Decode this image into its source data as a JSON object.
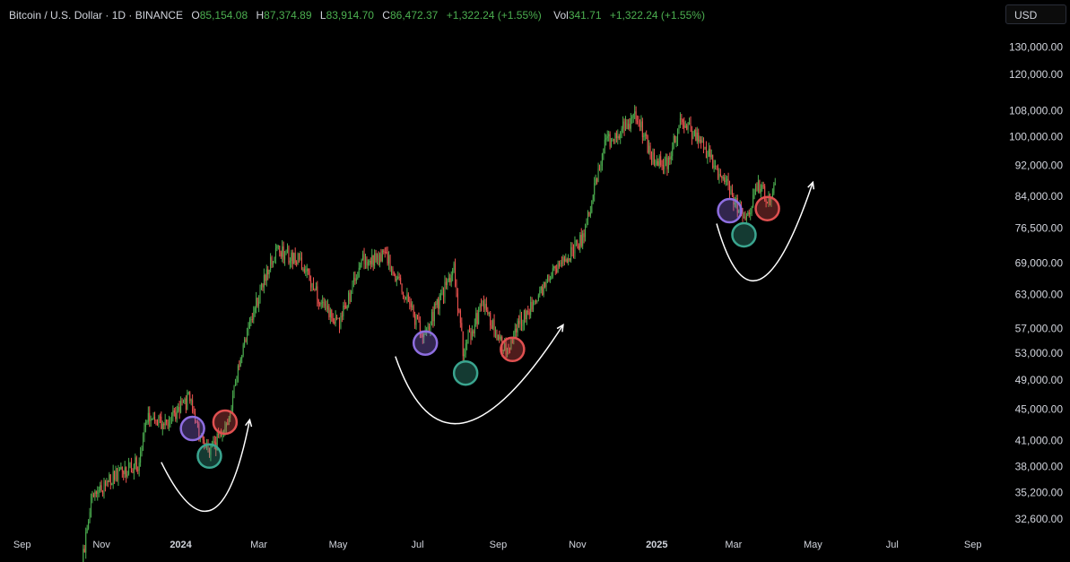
{
  "legend": {
    "symbol": "Bitcoin / U.S. Dollar · 1D · BINANCE",
    "open_label": "O",
    "open": "85,154.08",
    "high_label": "H",
    "high": "87,374.89",
    "low_label": "L",
    "low": "83,914.70",
    "close_label": "C",
    "close": "86,472.37",
    "change": "+1,322.24 (+1.55%)",
    "vol_label": "Vol",
    "vol": "341.71",
    "vol_change": "+1,322.24 (+1.55%)"
  },
  "currency_label": "USD",
  "colors": {
    "background": "#000000",
    "up": "#4caf50",
    "down": "#ef5350",
    "purple": "#8e6ee0",
    "teal": "#3aa58f",
    "red": "#e05050",
    "arc": "#ffffff"
  },
  "chart_data": {
    "type": "candlestick",
    "scale": "log",
    "ylim": [
      31500,
      138000
    ],
    "y_ticks": [
      32600,
      35200,
      38000,
      41000,
      45000,
      49000,
      53000,
      57000,
      63000,
      69000,
      76500,
      84000,
      92000,
      100000,
      108000,
      120000,
      130000
    ],
    "y_tick_labels": [
      "32,600.00",
      "35,200.00",
      "38,000.00",
      "41,000.00",
      "45,000.00",
      "49,000.00",
      "53,000.00",
      "57,000.00",
      "63,000.00",
      "69,000.00",
      "76,500.00",
      "84,000.00",
      "92,000.00",
      "100,000.00",
      "108,000.00",
      "120,000.00",
      "130,000.00"
    ],
    "x_range": [
      "2023-08-15",
      "2025-09-15"
    ],
    "x_ticks": [
      {
        "date": "2023-09-01",
        "label": "Sep",
        "bold": false
      },
      {
        "date": "2023-11-01",
        "label": "Nov",
        "bold": false
      },
      {
        "date": "2024-01-01",
        "label": "2024",
        "bold": true
      },
      {
        "date": "2024-03-01",
        "label": "Mar",
        "bold": false
      },
      {
        "date": "2024-05-01",
        "label": "May",
        "bold": false
      },
      {
        "date": "2024-07-01",
        "label": "Jul",
        "bold": false
      },
      {
        "date": "2024-09-01",
        "label": "Sep",
        "bold": false
      },
      {
        "date": "2024-11-01",
        "label": "Nov",
        "bold": false
      },
      {
        "date": "2025-01-01",
        "label": "2025",
        "bold": true
      },
      {
        "date": "2025-03-01",
        "label": "Mar",
        "bold": false
      },
      {
        "date": "2025-05-01",
        "label": "May",
        "bold": false
      },
      {
        "date": "2025-07-01",
        "label": "Jul",
        "bold": false
      },
      {
        "date": "2025-09-01",
        "label": "Sep",
        "bold": false
      }
    ],
    "price_path": [
      [
        "2023-10-15",
        27000
      ],
      [
        "2023-10-24",
        34500
      ],
      [
        "2023-11-10",
        37000
      ],
      [
        "2023-11-30",
        38500
      ],
      [
        "2023-12-06",
        44000
      ],
      [
        "2023-12-20",
        43000
      ],
      [
        "2024-01-08",
        46500
      ],
      [
        "2024-01-12",
        43000
      ],
      [
        "2024-01-23",
        39500
      ],
      [
        "2024-02-06",
        43000
      ],
      [
        "2024-02-15",
        52000
      ],
      [
        "2024-02-28",
        61000
      ],
      [
        "2024-03-14",
        72000
      ],
      [
        "2024-04-01",
        69500
      ],
      [
        "2024-04-17",
        62000
      ],
      [
        "2024-05-01",
        57500
      ],
      [
        "2024-05-20",
        69500
      ],
      [
        "2024-06-07",
        70500
      ],
      [
        "2024-06-25",
        61000
      ],
      [
        "2024-07-05",
        55500
      ],
      [
        "2024-07-29",
        68000
      ],
      [
        "2024-08-05",
        53500
      ],
      [
        "2024-08-20",
        61000
      ],
      [
        "2024-09-06",
        53500
      ],
      [
        "2024-10-01",
        63000
      ],
      [
        "2024-10-29",
        72000
      ],
      [
        "2024-11-06",
        75000
      ],
      [
        "2024-11-22",
        98000
      ],
      [
        "2024-12-17",
        106500
      ],
      [
        "2024-12-30",
        92500
      ],
      [
        "2025-01-09",
        92500
      ],
      [
        "2025-01-20",
        106000
      ],
      [
        "2025-02-06",
        97000
      ],
      [
        "2025-02-25",
        86000
      ],
      [
        "2025-03-10",
        78500
      ],
      [
        "2025-03-20",
        86500
      ],
      [
        "2025-03-30",
        82500
      ],
      [
        "2025-04-02",
        86500
      ]
    ],
    "markers": [
      {
        "date": "2024-01-10",
        "price": 42500,
        "color": "purple"
      },
      {
        "date": "2024-01-23",
        "price": 39200,
        "color": "teal"
      },
      {
        "date": "2024-02-04",
        "price": 43300,
        "color": "red"
      },
      {
        "date": "2024-07-07",
        "price": 54600,
        "color": "purple"
      },
      {
        "date": "2024-08-07",
        "price": 50000,
        "color": "teal"
      },
      {
        "date": "2024-09-12",
        "price": 53600,
        "color": "red"
      },
      {
        "date": "2025-02-26",
        "price": 80500,
        "color": "purple"
      },
      {
        "date": "2025-03-09",
        "price": 75000,
        "color": "teal"
      },
      {
        "date": "2025-03-27",
        "price": 81000,
        "color": "red"
      }
    ],
    "arcs": [
      {
        "points": [
          [
            "2023-12-17",
            38500
          ],
          [
            "2024-01-25",
            33500
          ],
          [
            "2024-02-23",
            43600
          ]
        ]
      },
      {
        "points": [
          [
            "2024-06-14",
            52500
          ],
          [
            "2024-08-05",
            43200
          ],
          [
            "2024-10-21",
            57600
          ]
        ]
      },
      {
        "points": [
          [
            "2025-02-16",
            77500
          ],
          [
            "2025-03-21",
            65800
          ],
          [
            "2025-05-01",
            87500
          ]
        ]
      }
    ]
  }
}
